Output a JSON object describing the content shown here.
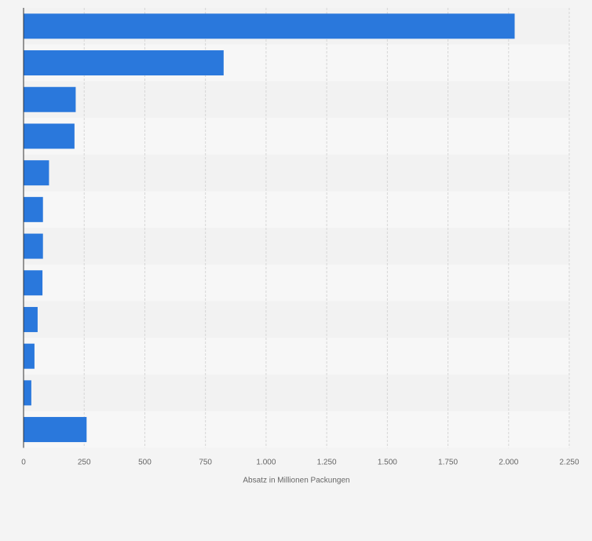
{
  "chart_data": {
    "type": "bar",
    "orientation": "horizontal",
    "title": "",
    "xlabel": "Absatz in Millionen Packungen",
    "ylabel": "",
    "categories": [
      "",
      "",
      "",
      "",
      "",
      "",
      "",
      "",
      "",
      "",
      "",
      ""
    ],
    "values": [
      2025,
      825,
      215,
      210,
      105,
      80,
      80,
      78,
      58,
      45,
      32,
      260
    ],
    "xlim": [
      0,
      2250
    ],
    "xticks": [
      0,
      250,
      500,
      750,
      1000,
      1250,
      1500,
      1750,
      2000,
      2250
    ],
    "xtick_labels": [
      "0",
      "250",
      "500",
      "750",
      "1.000",
      "1.250",
      "1.500",
      "1.750",
      "2.000",
      "2.250"
    ],
    "grid": true,
    "legend": "none",
    "bar_color": "#2a78dc",
    "band_colors": [
      "#f2f2f2",
      "#f7f7f7"
    ],
    "background_color": "#f4f4f4"
  }
}
